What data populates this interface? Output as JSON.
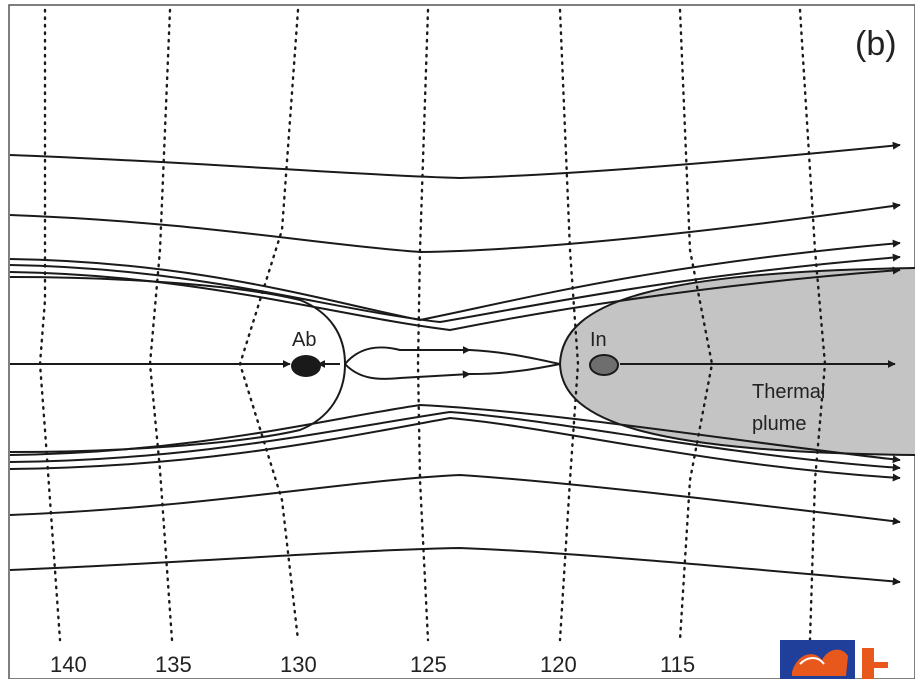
{
  "panel_label": "(b)",
  "labels": {
    "abstraction": "Ab",
    "injection": "In",
    "plume_line1": "Thermal",
    "plume_line2": "plume"
  },
  "contour_values": [
    "140",
    "135",
    "130",
    "125",
    "120",
    "115"
  ],
  "colors": {
    "plume_fill": "#c4c4c4",
    "abstraction_well": "#1a1a1a",
    "injection_well": "#6e6e6e",
    "line": "#1a1a1a",
    "logo_blue": "#1f3f9a",
    "logo_orange": "#e8581c"
  }
}
